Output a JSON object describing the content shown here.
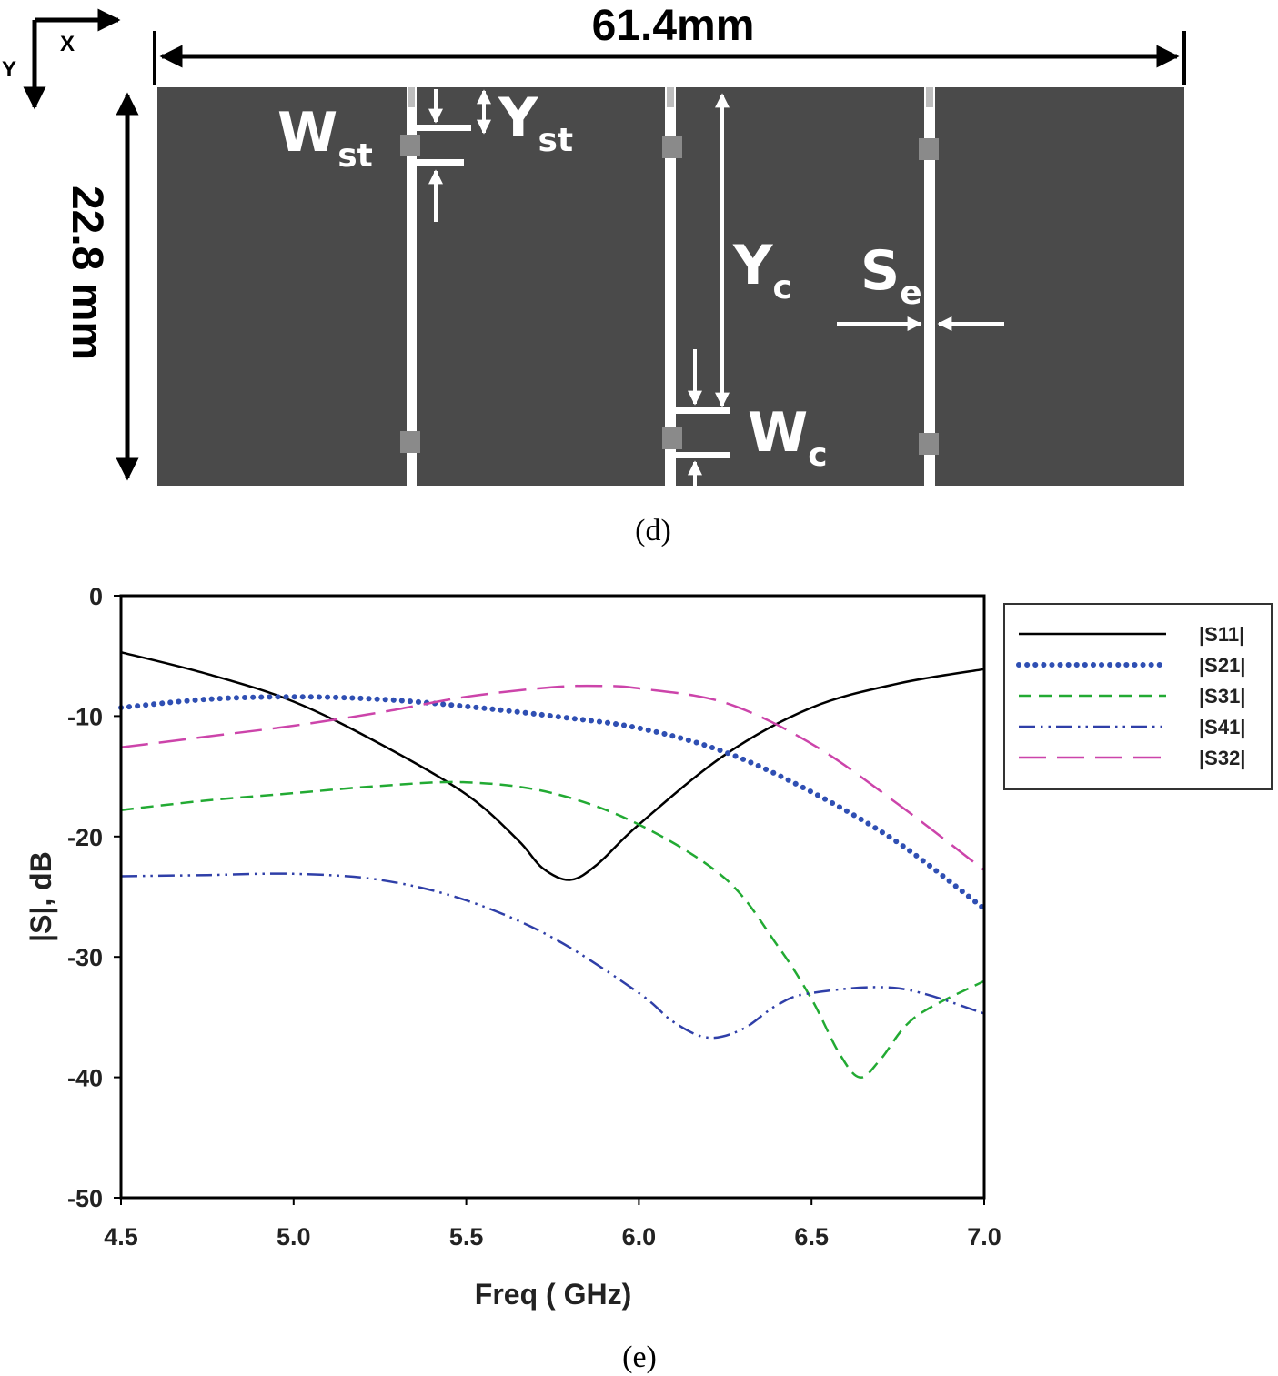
{
  "layout_diagram": {
    "width_label": "61.4mm",
    "height_label": "22.8 mm",
    "axis_x_label": "X",
    "axis_y_label": "Y",
    "w_st_main": "W",
    "w_st_sub": "st",
    "y_st_main": "Y",
    "y_st_sub": "st",
    "y_c_main": "Y",
    "y_c_sub": "c",
    "s_e_main": "S",
    "s_e_sub": "e",
    "w_c_main": "W",
    "w_c_sub": "c",
    "substrate_color": "#4a4a4a",
    "caption": "(d)"
  },
  "chart_data": {
    "type": "line",
    "title": "",
    "xlabel": "Freq ( GHz)",
    "ylabel": "|S|, dB",
    "xlim": [
      4.5,
      7.0
    ],
    "ylim": [
      -50,
      0
    ],
    "xticks": [
      4.5,
      5.0,
      5.5,
      6.0,
      6.5,
      7.0
    ],
    "xtick_labels": [
      "4.5",
      "5.0",
      "5.5",
      "6.0",
      "6.5",
      "7.0"
    ],
    "yticks": [
      0,
      -10,
      -20,
      -30,
      -40,
      -50
    ],
    "ytick_labels": [
      "0",
      "-10",
      "-20",
      "-30",
      "-40",
      "-50"
    ],
    "legend_position": "right",
    "caption": "(e)",
    "series": [
      {
        "name": "|S11|",
        "color": "#000000",
        "style": "solid",
        "points": [
          [
            4.5,
            -4.7
          ],
          [
            4.75,
            -6.5
          ],
          [
            5.0,
            -8.8
          ],
          [
            5.25,
            -12.3
          ],
          [
            5.5,
            -16.5
          ],
          [
            5.65,
            -20.3
          ],
          [
            5.72,
            -22.6
          ],
          [
            5.8,
            -23.6
          ],
          [
            5.88,
            -22.3
          ],
          [
            6.0,
            -19.0
          ],
          [
            6.25,
            -13.2
          ],
          [
            6.5,
            -9.3
          ],
          [
            6.75,
            -7.3
          ],
          [
            7.0,
            -6.1
          ]
        ]
      },
      {
        "name": "|S21|",
        "color": "#2f4fb3",
        "style": "dotted",
        "points": [
          [
            4.5,
            -9.3
          ],
          [
            4.75,
            -8.6
          ],
          [
            5.0,
            -8.4
          ],
          [
            5.25,
            -8.6
          ],
          [
            5.5,
            -9.2
          ],
          [
            5.75,
            -10.0
          ],
          [
            6.0,
            -11.0
          ],
          [
            6.25,
            -13.0
          ],
          [
            6.5,
            -16.3
          ],
          [
            6.75,
            -20.5
          ],
          [
            7.0,
            -26.0
          ]
        ]
      },
      {
        "name": "|S31|",
        "color": "#22aa33",
        "style": "dashed",
        "points": [
          [
            4.5,
            -17.8
          ],
          [
            4.75,
            -17.0
          ],
          [
            5.0,
            -16.4
          ],
          [
            5.25,
            -15.8
          ],
          [
            5.5,
            -15.5
          ],
          [
            5.75,
            -16.4
          ],
          [
            6.0,
            -19.0
          ],
          [
            6.25,
            -23.5
          ],
          [
            6.4,
            -29.0
          ],
          [
            6.5,
            -33.5
          ],
          [
            6.58,
            -38.0
          ],
          [
            6.64,
            -40.0
          ],
          [
            6.7,
            -38.5
          ],
          [
            6.8,
            -35.0
          ],
          [
            7.0,
            -32.0
          ]
        ]
      },
      {
        "name": "|S41|",
        "color": "#2f3fa8",
        "style": "dashdotdot",
        "points": [
          [
            4.5,
            -23.3
          ],
          [
            4.75,
            -23.2
          ],
          [
            5.0,
            -23.1
          ],
          [
            5.25,
            -23.6
          ],
          [
            5.5,
            -25.3
          ],
          [
            5.75,
            -28.4
          ],
          [
            6.0,
            -33.0
          ],
          [
            6.1,
            -35.4
          ],
          [
            6.2,
            -36.7
          ],
          [
            6.3,
            -36.0
          ],
          [
            6.4,
            -34.0
          ],
          [
            6.5,
            -33.0
          ],
          [
            6.75,
            -32.6
          ],
          [
            7.0,
            -34.7
          ]
        ]
      },
      {
        "name": "|S32|",
        "color": "#cc44aa",
        "style": "longdash",
        "points": [
          [
            4.5,
            -12.6
          ],
          [
            4.75,
            -11.7
          ],
          [
            5.0,
            -10.8
          ],
          [
            5.25,
            -9.7
          ],
          [
            5.5,
            -8.4
          ],
          [
            5.75,
            -7.6
          ],
          [
            5.9,
            -7.5
          ],
          [
            6.0,
            -7.7
          ],
          [
            6.25,
            -8.9
          ],
          [
            6.5,
            -12.3
          ],
          [
            6.75,
            -17.3
          ],
          [
            7.0,
            -22.8
          ]
        ]
      }
    ]
  }
}
